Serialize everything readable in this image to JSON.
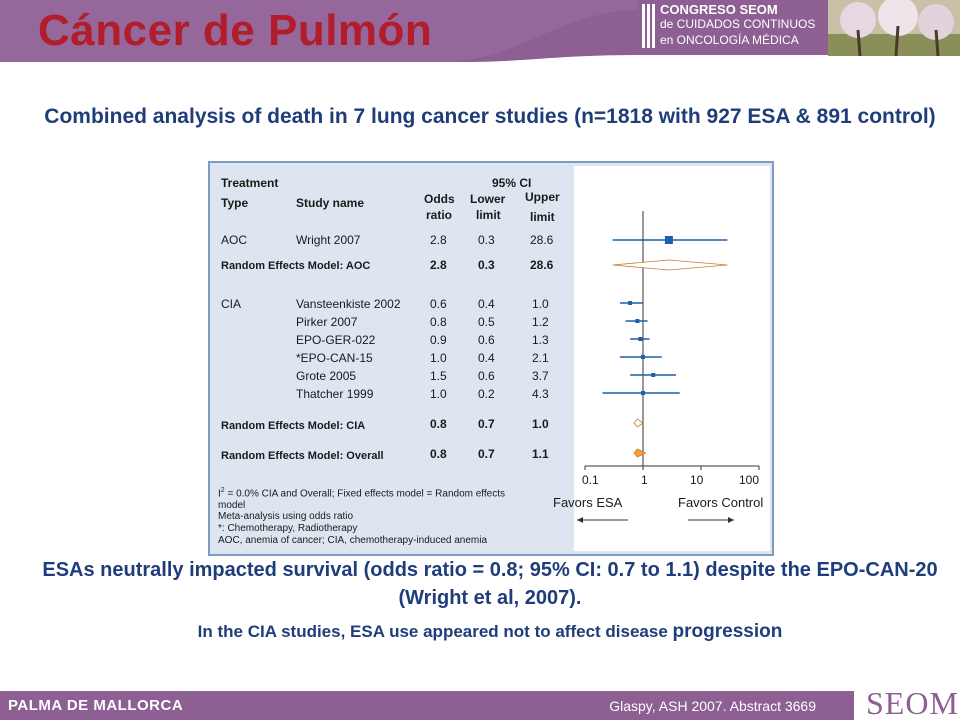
{
  "header": {
    "title": "Cáncer de Pulmón",
    "congress_logo": {
      "line1": "CONGRESO SEOM",
      "line2": "de CUIDADOS CONTINUOS",
      "line3": "en ONCOLOGÍA MÉDICA"
    }
  },
  "subtitle": "Combined analysis of death in 7 lung cancer studies (n=1818 with 927 ESA & 891 control)",
  "figure": {
    "col_headers": {
      "treatment": "Treatment",
      "type": "Type",
      "study": "Study name",
      "odds": "Odds",
      "ratio": "ratio",
      "ci": "95% CI",
      "lower1": "Lower",
      "lower2": "limit",
      "upper1": "Upper",
      "upper2": "limit"
    },
    "rows": [
      {
        "type": "AOC",
        "study": "Wright 2007",
        "or": "2.8",
        "lo": "0.3",
        "hi": "28.6"
      },
      {
        "type": "",
        "study": "Random Effects Model: AOC",
        "or": "2.8",
        "lo": "0.3",
        "hi": "28.6"
      },
      {
        "type": "CIA",
        "study": "Vansteenkiste 2002",
        "or": "0.6",
        "lo": "0.4",
        "hi": "1.0"
      },
      {
        "type": "",
        "study": "Pirker 2007",
        "or": "0.8",
        "lo": "0.5",
        "hi": "1.2"
      },
      {
        "type": "",
        "study": "EPO-GER-022",
        "or": "0.9",
        "lo": "0.6",
        "hi": "1.3"
      },
      {
        "type": "",
        "study": "*EPO-CAN-15",
        "or": "1.0",
        "lo": "0.4",
        "hi": "2.1"
      },
      {
        "type": "",
        "study": "Grote 2005",
        "or": "1.5",
        "lo": "0.6",
        "hi": "3.7"
      },
      {
        "type": "",
        "study": "Thatcher 1999",
        "or": "1.0",
        "lo": "0.2",
        "hi": "4.3"
      },
      {
        "type": "",
        "study": "Random Effects Model: CIA",
        "or": "0.8",
        "lo": "0.7",
        "hi": "1.0"
      },
      {
        "type": "",
        "study": "Random Effects Model: Overall",
        "or": "0.8",
        "lo": "0.7",
        "hi": "1.1"
      }
    ],
    "axis_ticks": [
      "0.1",
      "1",
      "10",
      "100"
    ],
    "favors_left": "Favors ESA",
    "favors_right": "Favors Control",
    "notes": {
      "i2": "I",
      "i2_sup": "2",
      "i2_rest": " = 0.0% CIA and Overall; Fixed effects model = Random effects",
      "i2_cont": "model",
      "meta": "Meta-analysis using odds ratio",
      "star": "*: Chemotherapy, Radiotherapy",
      "abbr": "AOC, anemia of cancer; CIA, chemotherapy-induced anemia"
    },
    "colors": {
      "marker": "#1f5fa8",
      "diamond_aoc": "#ffffff",
      "diamond_cia": "#ffffff",
      "diamond_overall": "#f4a13a"
    }
  },
  "chart_data": {
    "type": "scatter",
    "x_scale": "log",
    "xlim": [
      0.1,
      100
    ],
    "x_ticks": [
      0.1,
      1,
      10,
      100
    ],
    "points": [
      {
        "study": "Wright 2007",
        "or": 2.8,
        "lo": 0.3,
        "hi": 28.6,
        "kind": "study"
      },
      {
        "study": "Random Effects Model: AOC",
        "or": 2.8,
        "lo": 0.3,
        "hi": 28.6,
        "kind": "summary"
      },
      {
        "study": "Vansteenkiste 2002",
        "or": 0.6,
        "lo": 0.4,
        "hi": 1.0,
        "kind": "study"
      },
      {
        "study": "Pirker 2007",
        "or": 0.8,
        "lo": 0.5,
        "hi": 1.2,
        "kind": "study"
      },
      {
        "study": "EPO-GER-022",
        "or": 0.9,
        "lo": 0.6,
        "hi": 1.3,
        "kind": "study"
      },
      {
        "study": "*EPO-CAN-15",
        "or": 1.0,
        "lo": 0.4,
        "hi": 2.1,
        "kind": "study"
      },
      {
        "study": "Grote 2005",
        "or": 1.5,
        "lo": 0.6,
        "hi": 3.7,
        "kind": "study"
      },
      {
        "study": "Thatcher 1999",
        "or": 1.0,
        "lo": 0.2,
        "hi": 4.3,
        "kind": "study"
      },
      {
        "study": "Random Effects Model: CIA",
        "or": 0.8,
        "lo": 0.7,
        "hi": 1.0,
        "kind": "summary"
      },
      {
        "study": "Random Effects Model: Overall",
        "or": 0.8,
        "lo": 0.7,
        "hi": 1.1,
        "kind": "summary"
      }
    ]
  },
  "conclusion": "ESAs neutrally impacted survival (odds ratio = 0.8; 95% CI: 0.7 to 1.1) despite the EPO-CAN-20 (Wright et al, 2007).",
  "note": {
    "main": "In the CIA studies, ESA use appeared not to affect disease ",
    "emph": "progression"
  },
  "footer": {
    "left": "PALMA DE MALLORCA",
    "right": "Glaspy, ASH 2007. Abstract 3669",
    "logo": "SEOM"
  }
}
